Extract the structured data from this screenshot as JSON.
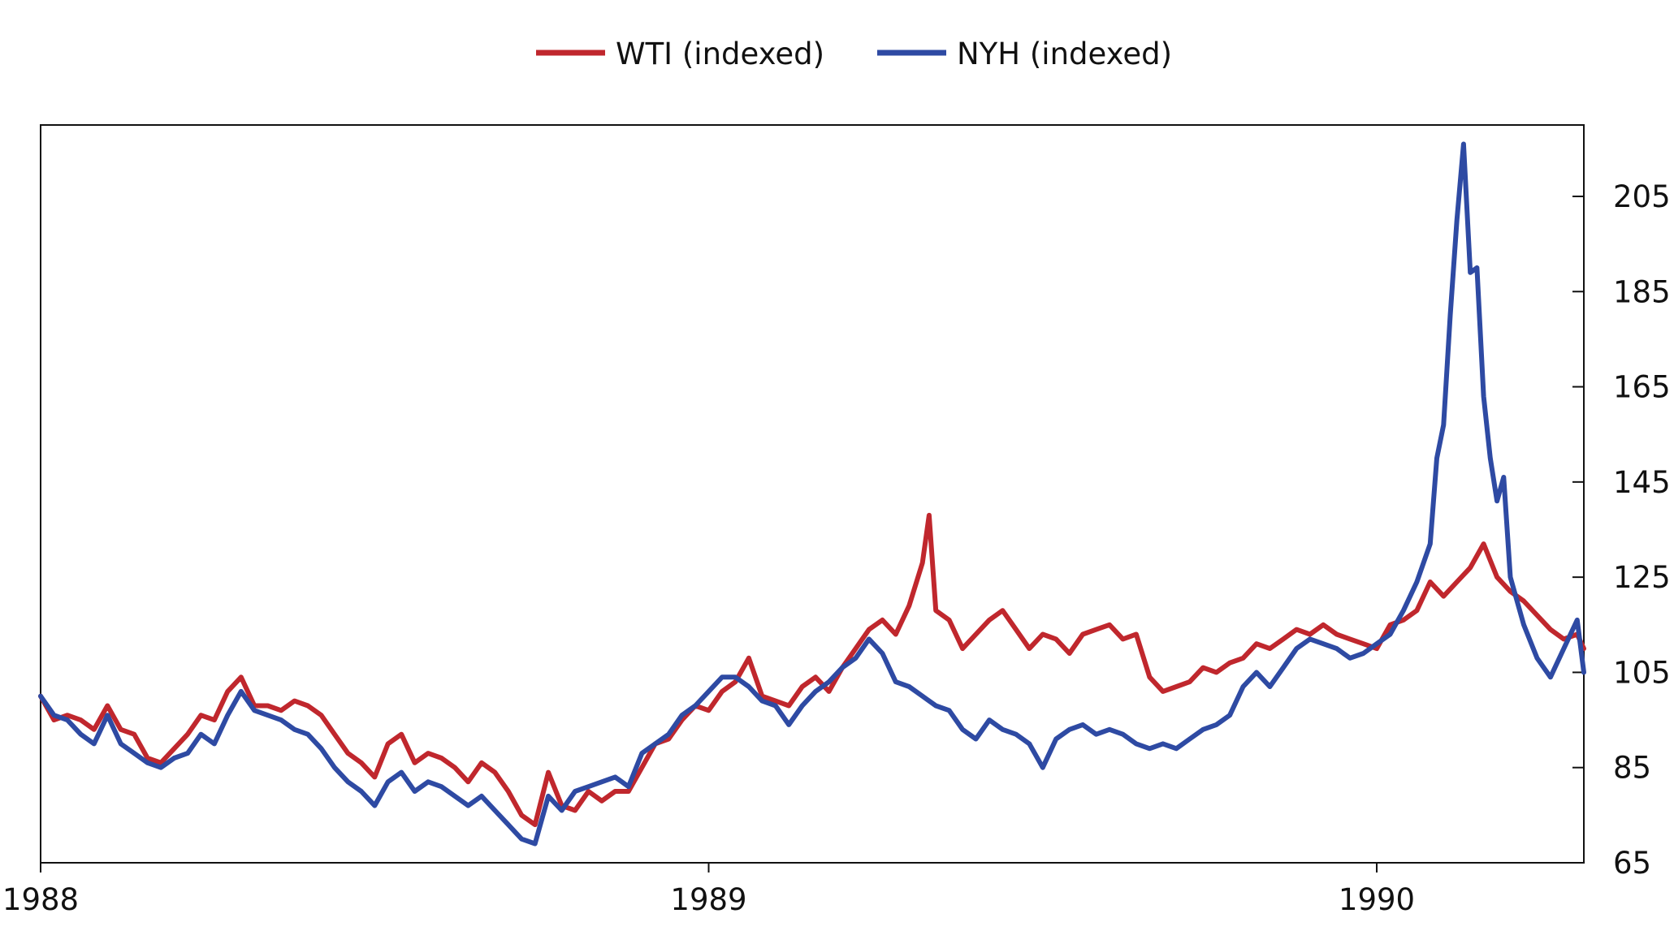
{
  "chart_data": {
    "type": "line",
    "title": "",
    "xlabel": "",
    "ylabel": "",
    "legend_position": "top-center",
    "grid": false,
    "x_ticks": [
      1988,
      1989,
      1990
    ],
    "x_tick_labels": [
      "1988",
      "1989",
      "1990"
    ],
    "xlim": [
      1988,
      1990.31
    ],
    "ylim": [
      65,
      220
    ],
    "y_axis_side": "right",
    "y_ticks": [
      65,
      85,
      105,
      125,
      145,
      165,
      185,
      205
    ],
    "y_tick_labels": [
      "65",
      "85",
      "105",
      "125",
      "145",
      "165",
      "185",
      "205"
    ],
    "series": [
      {
        "name": "WTI (indexed)",
        "color": "#c0272d",
        "points": [
          [
            1988.0,
            100
          ],
          [
            1988.02,
            95
          ],
          [
            1988.04,
            96
          ],
          [
            1988.06,
            95
          ],
          [
            1988.08,
            93
          ],
          [
            1988.1,
            98
          ],
          [
            1988.12,
            93
          ],
          [
            1988.14,
            92
          ],
          [
            1988.16,
            87
          ],
          [
            1988.18,
            86
          ],
          [
            1988.2,
            89
          ],
          [
            1988.22,
            92
          ],
          [
            1988.24,
            96
          ],
          [
            1988.26,
            95
          ],
          [
            1988.28,
            101
          ],
          [
            1988.3,
            104
          ],
          [
            1988.32,
            98
          ],
          [
            1988.34,
            98
          ],
          [
            1988.36,
            97
          ],
          [
            1988.38,
            99
          ],
          [
            1988.4,
            98
          ],
          [
            1988.42,
            96
          ],
          [
            1988.44,
            92
          ],
          [
            1988.46,
            88
          ],
          [
            1988.48,
            86
          ],
          [
            1988.5,
            83
          ],
          [
            1988.52,
            90
          ],
          [
            1988.54,
            92
          ],
          [
            1988.56,
            86
          ],
          [
            1988.58,
            88
          ],
          [
            1988.6,
            87
          ],
          [
            1988.62,
            85
          ],
          [
            1988.64,
            82
          ],
          [
            1988.66,
            86
          ],
          [
            1988.68,
            84
          ],
          [
            1988.7,
            80
          ],
          [
            1988.72,
            75
          ],
          [
            1988.74,
            73
          ],
          [
            1988.76,
            84
          ],
          [
            1988.78,
            77
          ],
          [
            1988.8,
            76
          ],
          [
            1988.82,
            80
          ],
          [
            1988.84,
            78
          ],
          [
            1988.86,
            80
          ],
          [
            1988.88,
            80
          ],
          [
            1988.9,
            85
          ],
          [
            1988.92,
            90
          ],
          [
            1988.94,
            91
          ],
          [
            1988.96,
            95
          ],
          [
            1988.98,
            98
          ],
          [
            1989.0,
            97
          ],
          [
            1989.02,
            101
          ],
          [
            1989.04,
            103
          ],
          [
            1989.06,
            108
          ],
          [
            1989.08,
            100
          ],
          [
            1989.1,
            99
          ],
          [
            1989.12,
            98
          ],
          [
            1989.14,
            102
          ],
          [
            1989.16,
            104
          ],
          [
            1989.18,
            101
          ],
          [
            1989.2,
            106
          ],
          [
            1989.22,
            110
          ],
          [
            1989.24,
            114
          ],
          [
            1989.26,
            116
          ],
          [
            1989.28,
            113
          ],
          [
            1989.3,
            119
          ],
          [
            1989.32,
            128
          ],
          [
            1989.33,
            138
          ],
          [
            1989.34,
            118
          ],
          [
            1989.36,
            116
          ],
          [
            1989.38,
            110
          ],
          [
            1989.4,
            113
          ],
          [
            1989.42,
            116
          ],
          [
            1989.44,
            118
          ],
          [
            1989.46,
            114
          ],
          [
            1989.48,
            110
          ],
          [
            1989.5,
            113
          ],
          [
            1989.52,
            112
          ],
          [
            1989.54,
            109
          ],
          [
            1989.56,
            113
          ],
          [
            1989.58,
            114
          ],
          [
            1989.6,
            115
          ],
          [
            1989.62,
            112
          ],
          [
            1989.64,
            113
          ],
          [
            1989.66,
            104
          ],
          [
            1989.68,
            101
          ],
          [
            1989.7,
            102
          ],
          [
            1989.72,
            103
          ],
          [
            1989.74,
            106
          ],
          [
            1989.76,
            105
          ],
          [
            1989.78,
            107
          ],
          [
            1989.8,
            108
          ],
          [
            1989.82,
            111
          ],
          [
            1989.84,
            110
          ],
          [
            1989.86,
            112
          ],
          [
            1989.88,
            114
          ],
          [
            1989.9,
            113
          ],
          [
            1989.92,
            115
          ],
          [
            1989.94,
            113
          ],
          [
            1989.96,
            112
          ],
          [
            1989.98,
            111
          ],
          [
            1990.0,
            110
          ],
          [
            1990.02,
            115
          ],
          [
            1990.04,
            116
          ],
          [
            1990.06,
            118
          ],
          [
            1990.08,
            124
          ],
          [
            1990.1,
            121
          ],
          [
            1990.12,
            124
          ],
          [
            1990.14,
            127
          ],
          [
            1990.16,
            132
          ],
          [
            1990.18,
            125
          ],
          [
            1990.2,
            122
          ],
          [
            1990.22,
            120
          ],
          [
            1990.24,
            117
          ],
          [
            1990.26,
            114
          ],
          [
            1990.28,
            112
          ],
          [
            1990.3,
            113
          ],
          [
            1990.31,
            110
          ]
        ]
      },
      {
        "name": "NYH (indexed)",
        "color": "#2e4aa3",
        "points": [
          [
            1988.0,
            100
          ],
          [
            1988.02,
            96
          ],
          [
            1988.04,
            95
          ],
          [
            1988.06,
            92
          ],
          [
            1988.08,
            90
          ],
          [
            1988.1,
            96
          ],
          [
            1988.12,
            90
          ],
          [
            1988.14,
            88
          ],
          [
            1988.16,
            86
          ],
          [
            1988.18,
            85
          ],
          [
            1988.2,
            87
          ],
          [
            1988.22,
            88
          ],
          [
            1988.24,
            92
          ],
          [
            1988.26,
            90
          ],
          [
            1988.28,
            96
          ],
          [
            1988.3,
            101
          ],
          [
            1988.32,
            97
          ],
          [
            1988.34,
            96
          ],
          [
            1988.36,
            95
          ],
          [
            1988.38,
            93
          ],
          [
            1988.4,
            92
          ],
          [
            1988.42,
            89
          ],
          [
            1988.44,
            85
          ],
          [
            1988.46,
            82
          ],
          [
            1988.48,
            80
          ],
          [
            1988.5,
            77
          ],
          [
            1988.52,
            82
          ],
          [
            1988.54,
            84
          ],
          [
            1988.56,
            80
          ],
          [
            1988.58,
            82
          ],
          [
            1988.6,
            81
          ],
          [
            1988.62,
            79
          ],
          [
            1988.64,
            77
          ],
          [
            1988.66,
            79
          ],
          [
            1988.68,
            76
          ],
          [
            1988.7,
            73
          ],
          [
            1988.72,
            70
          ],
          [
            1988.74,
            69
          ],
          [
            1988.76,
            79
          ],
          [
            1988.78,
            76
          ],
          [
            1988.8,
            80
          ],
          [
            1988.82,
            81
          ],
          [
            1988.84,
            82
          ],
          [
            1988.86,
            83
          ],
          [
            1988.88,
            81
          ],
          [
            1988.9,
            88
          ],
          [
            1988.92,
            90
          ],
          [
            1988.94,
            92
          ],
          [
            1988.96,
            96
          ],
          [
            1988.98,
            98
          ],
          [
            1989.0,
            101
          ],
          [
            1989.02,
            104
          ],
          [
            1989.04,
            104
          ],
          [
            1989.06,
            102
          ],
          [
            1989.08,
            99
          ],
          [
            1989.1,
            98
          ],
          [
            1989.12,
            94
          ],
          [
            1989.14,
            98
          ],
          [
            1989.16,
            101
          ],
          [
            1989.18,
            103
          ],
          [
            1989.2,
            106
          ],
          [
            1989.22,
            108
          ],
          [
            1989.24,
            112
          ],
          [
            1989.26,
            109
          ],
          [
            1989.28,
            103
          ],
          [
            1989.3,
            102
          ],
          [
            1989.32,
            100
          ],
          [
            1989.34,
            98
          ],
          [
            1989.36,
            97
          ],
          [
            1989.38,
            93
          ],
          [
            1989.4,
            91
          ],
          [
            1989.42,
            95
          ],
          [
            1989.44,
            93
          ],
          [
            1989.46,
            92
          ],
          [
            1989.48,
            90
          ],
          [
            1989.5,
            85
          ],
          [
            1989.52,
            91
          ],
          [
            1989.54,
            93
          ],
          [
            1989.56,
            94
          ],
          [
            1989.58,
            92
          ],
          [
            1989.6,
            93
          ],
          [
            1989.62,
            92
          ],
          [
            1989.64,
            90
          ],
          [
            1989.66,
            89
          ],
          [
            1989.68,
            90
          ],
          [
            1989.7,
            89
          ],
          [
            1989.72,
            91
          ],
          [
            1989.74,
            93
          ],
          [
            1989.76,
            94
          ],
          [
            1989.78,
            96
          ],
          [
            1989.8,
            102
          ],
          [
            1989.82,
            105
          ],
          [
            1989.84,
            102
          ],
          [
            1989.86,
            106
          ],
          [
            1989.88,
            110
          ],
          [
            1989.9,
            112
          ],
          [
            1989.92,
            111
          ],
          [
            1989.94,
            110
          ],
          [
            1989.96,
            108
          ],
          [
            1989.98,
            109
          ],
          [
            1990.0,
            111
          ],
          [
            1990.02,
            113
          ],
          [
            1990.04,
            118
          ],
          [
            1990.06,
            124
          ],
          [
            1990.08,
            132
          ],
          [
            1990.09,
            150
          ],
          [
            1990.1,
            157
          ],
          [
            1990.11,
            180
          ],
          [
            1990.12,
            200
          ],
          [
            1990.13,
            216
          ],
          [
            1990.14,
            189
          ],
          [
            1990.15,
            190
          ],
          [
            1990.16,
            163
          ],
          [
            1990.17,
            150
          ],
          [
            1990.18,
            141
          ],
          [
            1990.19,
            146
          ],
          [
            1990.2,
            125
          ],
          [
            1990.22,
            115
          ],
          [
            1990.24,
            108
          ],
          [
            1990.26,
            104
          ],
          [
            1990.28,
            110
          ],
          [
            1990.3,
            116
          ],
          [
            1990.31,
            105
          ]
        ]
      }
    ]
  }
}
